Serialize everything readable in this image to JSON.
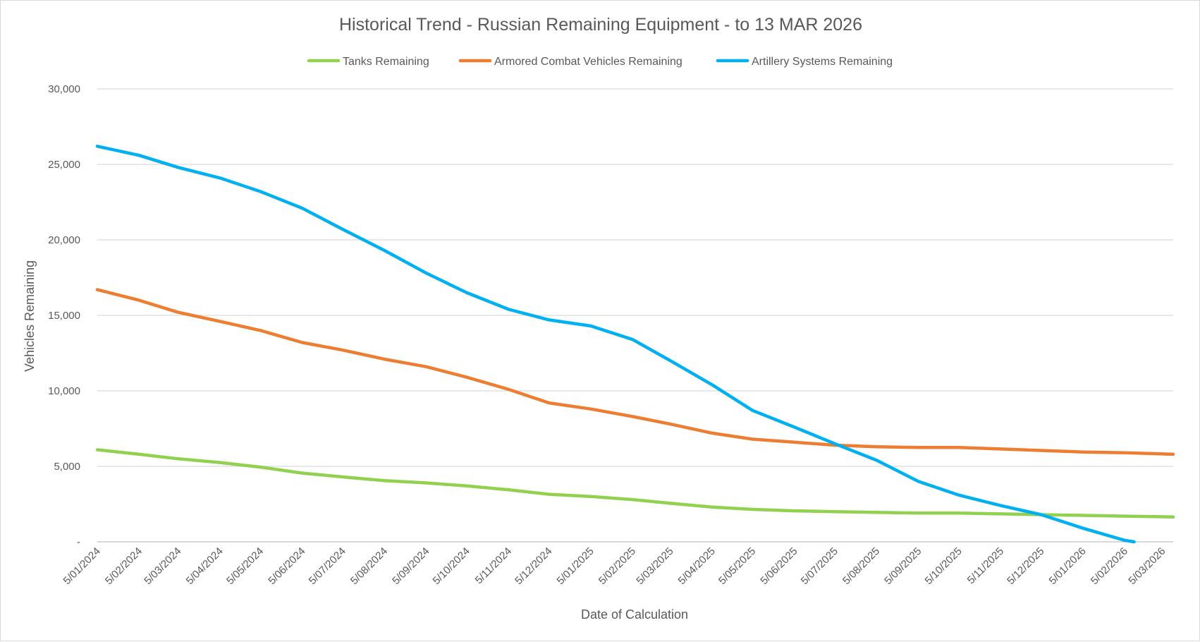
{
  "chart_data": {
    "type": "line",
    "title": "Historical Trend - Russian Remaining Equipment - to 13 MAR 2026",
    "xlabel": "Date of Calculation",
    "ylabel": "Vehicles Remaining",
    "ylim": [
      0,
      30000
    ],
    "y_ticks": [
      0,
      5000,
      10000,
      15000,
      20000,
      25000,
      30000
    ],
    "y_tick_labels": [
      "-",
      "5,000",
      "10,000",
      "15,000",
      "20,000",
      "25,000",
      "30,000"
    ],
    "x_start": "2024-01-05",
    "x_end": "2026-03-13",
    "x_ticks": [
      "2024-01-05",
      "2024-02-05",
      "2024-03-05",
      "2024-04-05",
      "2024-05-05",
      "2024-06-05",
      "2024-07-05",
      "2024-08-05",
      "2024-09-05",
      "2024-10-05",
      "2024-11-05",
      "2024-12-05",
      "2025-01-05",
      "2025-02-05",
      "2025-03-05",
      "2025-04-05",
      "2025-05-05",
      "2025-06-05",
      "2025-07-05",
      "2025-08-05",
      "2025-09-05",
      "2025-10-05",
      "2025-11-05",
      "2025-12-05",
      "2026-01-05",
      "2026-02-05",
      "2026-03-05"
    ],
    "x_tick_labels": [
      "5/01/2024",
      "5/02/2024",
      "5/03/2024",
      "5/04/2024",
      "5/05/2024",
      "5/06/2024",
      "5/07/2024",
      "5/08/2024",
      "5/09/2024",
      "5/10/2024",
      "5/11/2024",
      "5/12/2024",
      "5/01/2025",
      "5/02/2025",
      "5/03/2025",
      "5/04/2025",
      "5/05/2025",
      "5/06/2025",
      "5/07/2025",
      "5/08/2025",
      "5/09/2025",
      "5/10/2025",
      "5/11/2025",
      "5/12/2025",
      "5/01/2026",
      "5/02/2026",
      "5/03/2026"
    ],
    "grid": true,
    "legend_position": "top",
    "series": [
      {
        "name": "Tanks Remaining",
        "color": "#92d050",
        "points": [
          [
            "2024-01-05",
            6100
          ],
          [
            "2024-02-05",
            5800
          ],
          [
            "2024-03-05",
            5500
          ],
          [
            "2024-04-05",
            5250
          ],
          [
            "2024-05-05",
            4950
          ],
          [
            "2024-06-05",
            4550
          ],
          [
            "2024-07-05",
            4300
          ],
          [
            "2024-08-05",
            4050
          ],
          [
            "2024-09-05",
            3900
          ],
          [
            "2024-10-05",
            3700
          ],
          [
            "2024-11-05",
            3450
          ],
          [
            "2024-12-05",
            3150
          ],
          [
            "2025-01-05",
            3000
          ],
          [
            "2025-02-05",
            2800
          ],
          [
            "2025-03-05",
            2550
          ],
          [
            "2025-04-05",
            2300
          ],
          [
            "2025-05-05",
            2150
          ],
          [
            "2025-06-05",
            2050
          ],
          [
            "2025-07-05",
            2000
          ],
          [
            "2025-08-05",
            1950
          ],
          [
            "2025-09-05",
            1900
          ],
          [
            "2025-10-05",
            1900
          ],
          [
            "2025-11-05",
            1850
          ],
          [
            "2025-12-05",
            1800
          ],
          [
            "2026-01-05",
            1750
          ],
          [
            "2026-02-05",
            1700
          ],
          [
            "2026-03-13",
            1650
          ]
        ]
      },
      {
        "name": "Armored Combat Vehicles Remaining",
        "color": "#ed7d31",
        "points": [
          [
            "2024-01-05",
            16700
          ],
          [
            "2024-02-05",
            16000
          ],
          [
            "2024-03-05",
            15200
          ],
          [
            "2024-04-05",
            14600
          ],
          [
            "2024-05-05",
            14000
          ],
          [
            "2024-06-05",
            13200
          ],
          [
            "2024-07-05",
            12700
          ],
          [
            "2024-08-05",
            12100
          ],
          [
            "2024-09-05",
            11600
          ],
          [
            "2024-10-05",
            10900
          ],
          [
            "2024-11-05",
            10100
          ],
          [
            "2024-12-05",
            9200
          ],
          [
            "2025-01-05",
            8800
          ],
          [
            "2025-02-05",
            8300
          ],
          [
            "2025-03-05",
            7800
          ],
          [
            "2025-04-05",
            7200
          ],
          [
            "2025-05-05",
            6800
          ],
          [
            "2025-06-05",
            6600
          ],
          [
            "2025-07-05",
            6400
          ],
          [
            "2025-08-05",
            6300
          ],
          [
            "2025-09-05",
            6250
          ],
          [
            "2025-10-05",
            6250
          ],
          [
            "2025-11-05",
            6150
          ],
          [
            "2025-12-05",
            6050
          ],
          [
            "2026-01-05",
            5950
          ],
          [
            "2026-02-05",
            5900
          ],
          [
            "2026-03-13",
            5800
          ]
        ]
      },
      {
        "name": "Artillery Systems Remaining",
        "color": "#00b0f0",
        "points": [
          [
            "2024-01-05",
            26200
          ],
          [
            "2024-02-05",
            25600
          ],
          [
            "2024-03-05",
            24800
          ],
          [
            "2024-04-05",
            24100
          ],
          [
            "2024-05-05",
            23200
          ],
          [
            "2024-06-05",
            22100
          ],
          [
            "2024-07-05",
            20700
          ],
          [
            "2024-08-05",
            19300
          ],
          [
            "2024-09-05",
            17800
          ],
          [
            "2024-10-05",
            16500
          ],
          [
            "2024-11-05",
            15400
          ],
          [
            "2024-12-05",
            14700
          ],
          [
            "2025-01-05",
            14300
          ],
          [
            "2025-02-05",
            13400
          ],
          [
            "2025-03-05",
            12000
          ],
          [
            "2025-04-05",
            10400
          ],
          [
            "2025-05-05",
            8700
          ],
          [
            "2025-06-05",
            7600
          ],
          [
            "2025-07-05",
            6500
          ],
          [
            "2025-08-05",
            5400
          ],
          [
            "2025-09-05",
            4000
          ],
          [
            "2025-10-05",
            3100
          ],
          [
            "2025-11-05",
            2400
          ],
          [
            "2025-12-05",
            1800
          ],
          [
            "2026-01-05",
            900
          ],
          [
            "2026-02-05",
            100
          ],
          [
            "2026-02-12",
            0
          ]
        ]
      }
    ]
  }
}
